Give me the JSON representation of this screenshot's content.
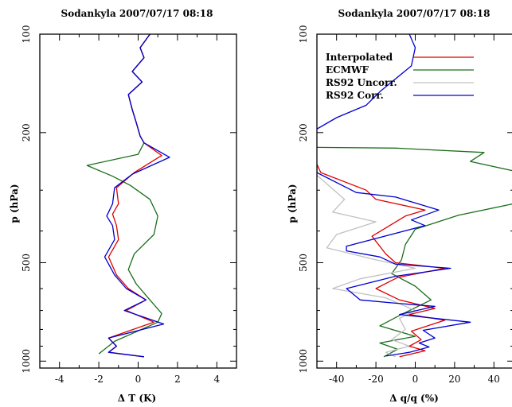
{
  "chart_data": [
    {
      "type": "line",
      "title": "Sodankyla 2007/07/17 08:18",
      "xlabel": "Δ T (K)",
      "ylabel": "p (hPa)",
      "xlim": [
        -5,
        5
      ],
      "ylim": [
        1050,
        100
      ],
      "yscale": "log",
      "xticks": [
        -4,
        -2,
        0,
        2,
        4
      ],
      "yticks": [
        100,
        200,
        500,
        1000
      ],
      "series": [
        {
          "color": "#1a6e1a",
          "points": [
            [
              0.6,
              100
            ],
            [
              0.1,
              110
            ],
            [
              0.3,
              118
            ],
            [
              -0.3,
              130
            ],
            [
              0.2,
              140
            ],
            [
              -0.5,
              153
            ],
            [
              -0.3,
              170
            ],
            [
              -0.1,
              186
            ],
            [
              0.1,
              205
            ],
            [
              0.3,
              215
            ],
            [
              0,
              233
            ],
            [
              -2.6,
              252
            ],
            [
              -1.3,
              272
            ],
            [
              -0.4,
              290
            ],
            [
              0.6,
              320
            ],
            [
              1.0,
              360
            ],
            [
              0.8,
              410
            ],
            [
              -0.2,
              470
            ],
            [
              -0.5,
              525
            ],
            [
              -0.1,
              580
            ],
            [
              0.5,
              640
            ],
            [
              1.2,
              715
            ],
            [
              1.0,
              760
            ],
            [
              -1.2,
              870
            ],
            [
              -2.0,
              950
            ]
          ]
        },
        {
          "color": "#e00000",
          "points": [
            [
              0.6,
              100
            ],
            [
              0.1,
              110
            ],
            [
              0.3,
              118
            ],
            [
              -0.3,
              130
            ],
            [
              0.2,
              140
            ],
            [
              -0.5,
              153
            ],
            [
              -0.3,
              170
            ],
            [
              -0.1,
              186
            ],
            [
              0.1,
              205
            ],
            [
              0.3,
              215
            ],
            [
              1.2,
              235
            ],
            [
              -0.2,
              265
            ],
            [
              -1.1,
              295
            ],
            [
              -1.0,
              330
            ],
            [
              -1.3,
              355
            ],
            [
              -1.1,
              385
            ],
            [
              -1.0,
              425
            ],
            [
              -1.5,
              480
            ],
            [
              -1.1,
              545
            ],
            [
              -0.5,
              600
            ],
            [
              0.4,
              650
            ],
            [
              -0.6,
              700
            ],
            [
              0.8,
              760
            ],
            [
              -1.5,
              850
            ],
            [
              -1.1,
              900
            ],
            [
              -1.5,
              940
            ],
            [
              0.3,
              970
            ]
          ]
        },
        {
          "color": "#0000d0",
          "points": [
            [
              0.6,
              100
            ],
            [
              0.1,
              110
            ],
            [
              0.3,
              118
            ],
            [
              -0.3,
              130
            ],
            [
              0.2,
              140
            ],
            [
              -0.5,
              153
            ],
            [
              -0.3,
              170
            ],
            [
              -0.1,
              186
            ],
            [
              0.1,
              205
            ],
            [
              0.3,
              215
            ],
            [
              1.6,
              238
            ],
            [
              -0.3,
              268
            ],
            [
              -1.2,
              295
            ],
            [
              -1.3,
              330
            ],
            [
              -1.6,
              360
            ],
            [
              -1.3,
              385
            ],
            [
              -1.2,
              425
            ],
            [
              -1.7,
              480
            ],
            [
              -1.2,
              545
            ],
            [
              -0.6,
              600
            ],
            [
              0.4,
              650
            ],
            [
              -0.7,
              700
            ],
            [
              1.3,
              770
            ],
            [
              -1.5,
              850
            ],
            [
              -1.1,
              900
            ],
            [
              -1.5,
              940
            ],
            [
              0.3,
              970
            ]
          ]
        }
      ]
    },
    {
      "type": "line",
      "title": "Sodankyla 2007/07/17 08:18",
      "xlabel": "Δ q/q (%)",
      "ylabel": "p (hPa)",
      "xlim": [
        -50,
        50
      ],
      "ylim": [
        1050,
        100
      ],
      "yscale": "log",
      "xticks": [
        -40,
        -20,
        0,
        20,
        40
      ],
      "yticks": [
        100,
        200,
        500,
        1000
      ],
      "legend": {
        "position": "top-left",
        "entries": [
          {
            "label": "Interpolated",
            "color": "#e00000"
          },
          {
            "label": "ECMWF",
            "color": "#1a6e1a"
          },
          {
            "label": "RS92 Uncorr.",
            "color": "#c0c0c0"
          },
          {
            "label": "RS92 Corr.",
            "color": "#0000d0"
          }
        ]
      },
      "series": [
        {
          "color": "#1a6e1a",
          "points": [
            [
              -50,
              222
            ],
            [
              -10,
              223
            ],
            [
              35,
              230
            ],
            [
              28,
              245
            ],
            [
              50,
              262
            ],
            [
              50,
              330
            ],
            [
              22,
              358
            ],
            [
              0,
              395
            ],
            [
              -5,
              440
            ],
            [
              -7,
              490
            ],
            [
              -12,
              540
            ],
            [
              0,
              590
            ],
            [
              8,
              650
            ],
            [
              -7,
              720
            ],
            [
              -18,
              780
            ],
            [
              0,
              840
            ],
            [
              -18,
              880
            ],
            [
              -9,
              920
            ],
            [
              -16,
              970
            ]
          ]
        },
        {
          "color": "#c0c0c0",
          "points": [
            [
              -50,
              270
            ],
            [
              -36,
              320
            ],
            [
              -42,
              350
            ],
            [
              -20,
              375
            ],
            [
              -40,
              410
            ],
            [
              -45,
              450
            ],
            [
              -20,
              490
            ],
            [
              0,
              520
            ],
            [
              -28,
              560
            ],
            [
              -42,
              600
            ],
            [
              -15,
              640
            ],
            [
              0,
              700
            ],
            [
              -8,
              740
            ],
            [
              -5,
              800
            ],
            [
              -12,
              860
            ],
            [
              -3,
              900
            ],
            [
              -15,
              940
            ],
            [
              -10,
              970
            ]
          ]
        },
        {
          "color": "#e00000",
          "points": [
            [
              -50,
              180
            ],
            [
              -53,
              200
            ],
            [
              -50,
              250
            ],
            [
              -48,
              265
            ],
            [
              -25,
              300
            ],
            [
              -20,
              320
            ],
            [
              5,
              345
            ],
            [
              -5,
              360
            ],
            [
              -22,
              415
            ],
            [
              -15,
              470
            ],
            [
              -10,
              500
            ],
            [
              15,
              520
            ],
            [
              -9,
              555
            ],
            [
              -20,
              600
            ],
            [
              -8,
              650
            ],
            [
              10,
              690
            ],
            [
              -3,
              720
            ],
            [
              15,
              750
            ],
            [
              -2,
              810
            ],
            [
              3,
              860
            ],
            [
              -3,
              900
            ],
            [
              5,
              930
            ],
            [
              -8,
              970
            ]
          ]
        },
        {
          "color": "#0000d0",
          "points": [
            [
              -3,
              100
            ],
            [
              0,
              110
            ],
            [
              -2,
              125
            ],
            [
              -12,
              140
            ],
            [
              -18,
              150
            ],
            [
              -25,
              165
            ],
            [
              -40,
              180
            ],
            [
              -50,
              195
            ],
            [
              -53,
              210
            ],
            [
              -50,
              250
            ],
            [
              -50,
              265
            ],
            [
              -30,
              305
            ],
            [
              -10,
              315
            ],
            [
              12,
              345
            ],
            [
              -2,
              370
            ],
            [
              5,
              385
            ],
            [
              -35,
              445
            ],
            [
              -35,
              460
            ],
            [
              -18,
              480
            ],
            [
              -10,
              505
            ],
            [
              18,
              520
            ],
            [
              -10,
              550
            ],
            [
              -35,
              600
            ],
            [
              -28,
              650
            ],
            [
              -10,
              665
            ],
            [
              10,
              680
            ],
            [
              -8,
              720
            ],
            [
              28,
              760
            ],
            [
              4,
              805
            ],
            [
              10,
              850
            ],
            [
              2,
              880
            ],
            [
              7,
              905
            ],
            [
              -3,
              940
            ],
            [
              -15,
              965
            ]
          ]
        }
      ]
    }
  ]
}
